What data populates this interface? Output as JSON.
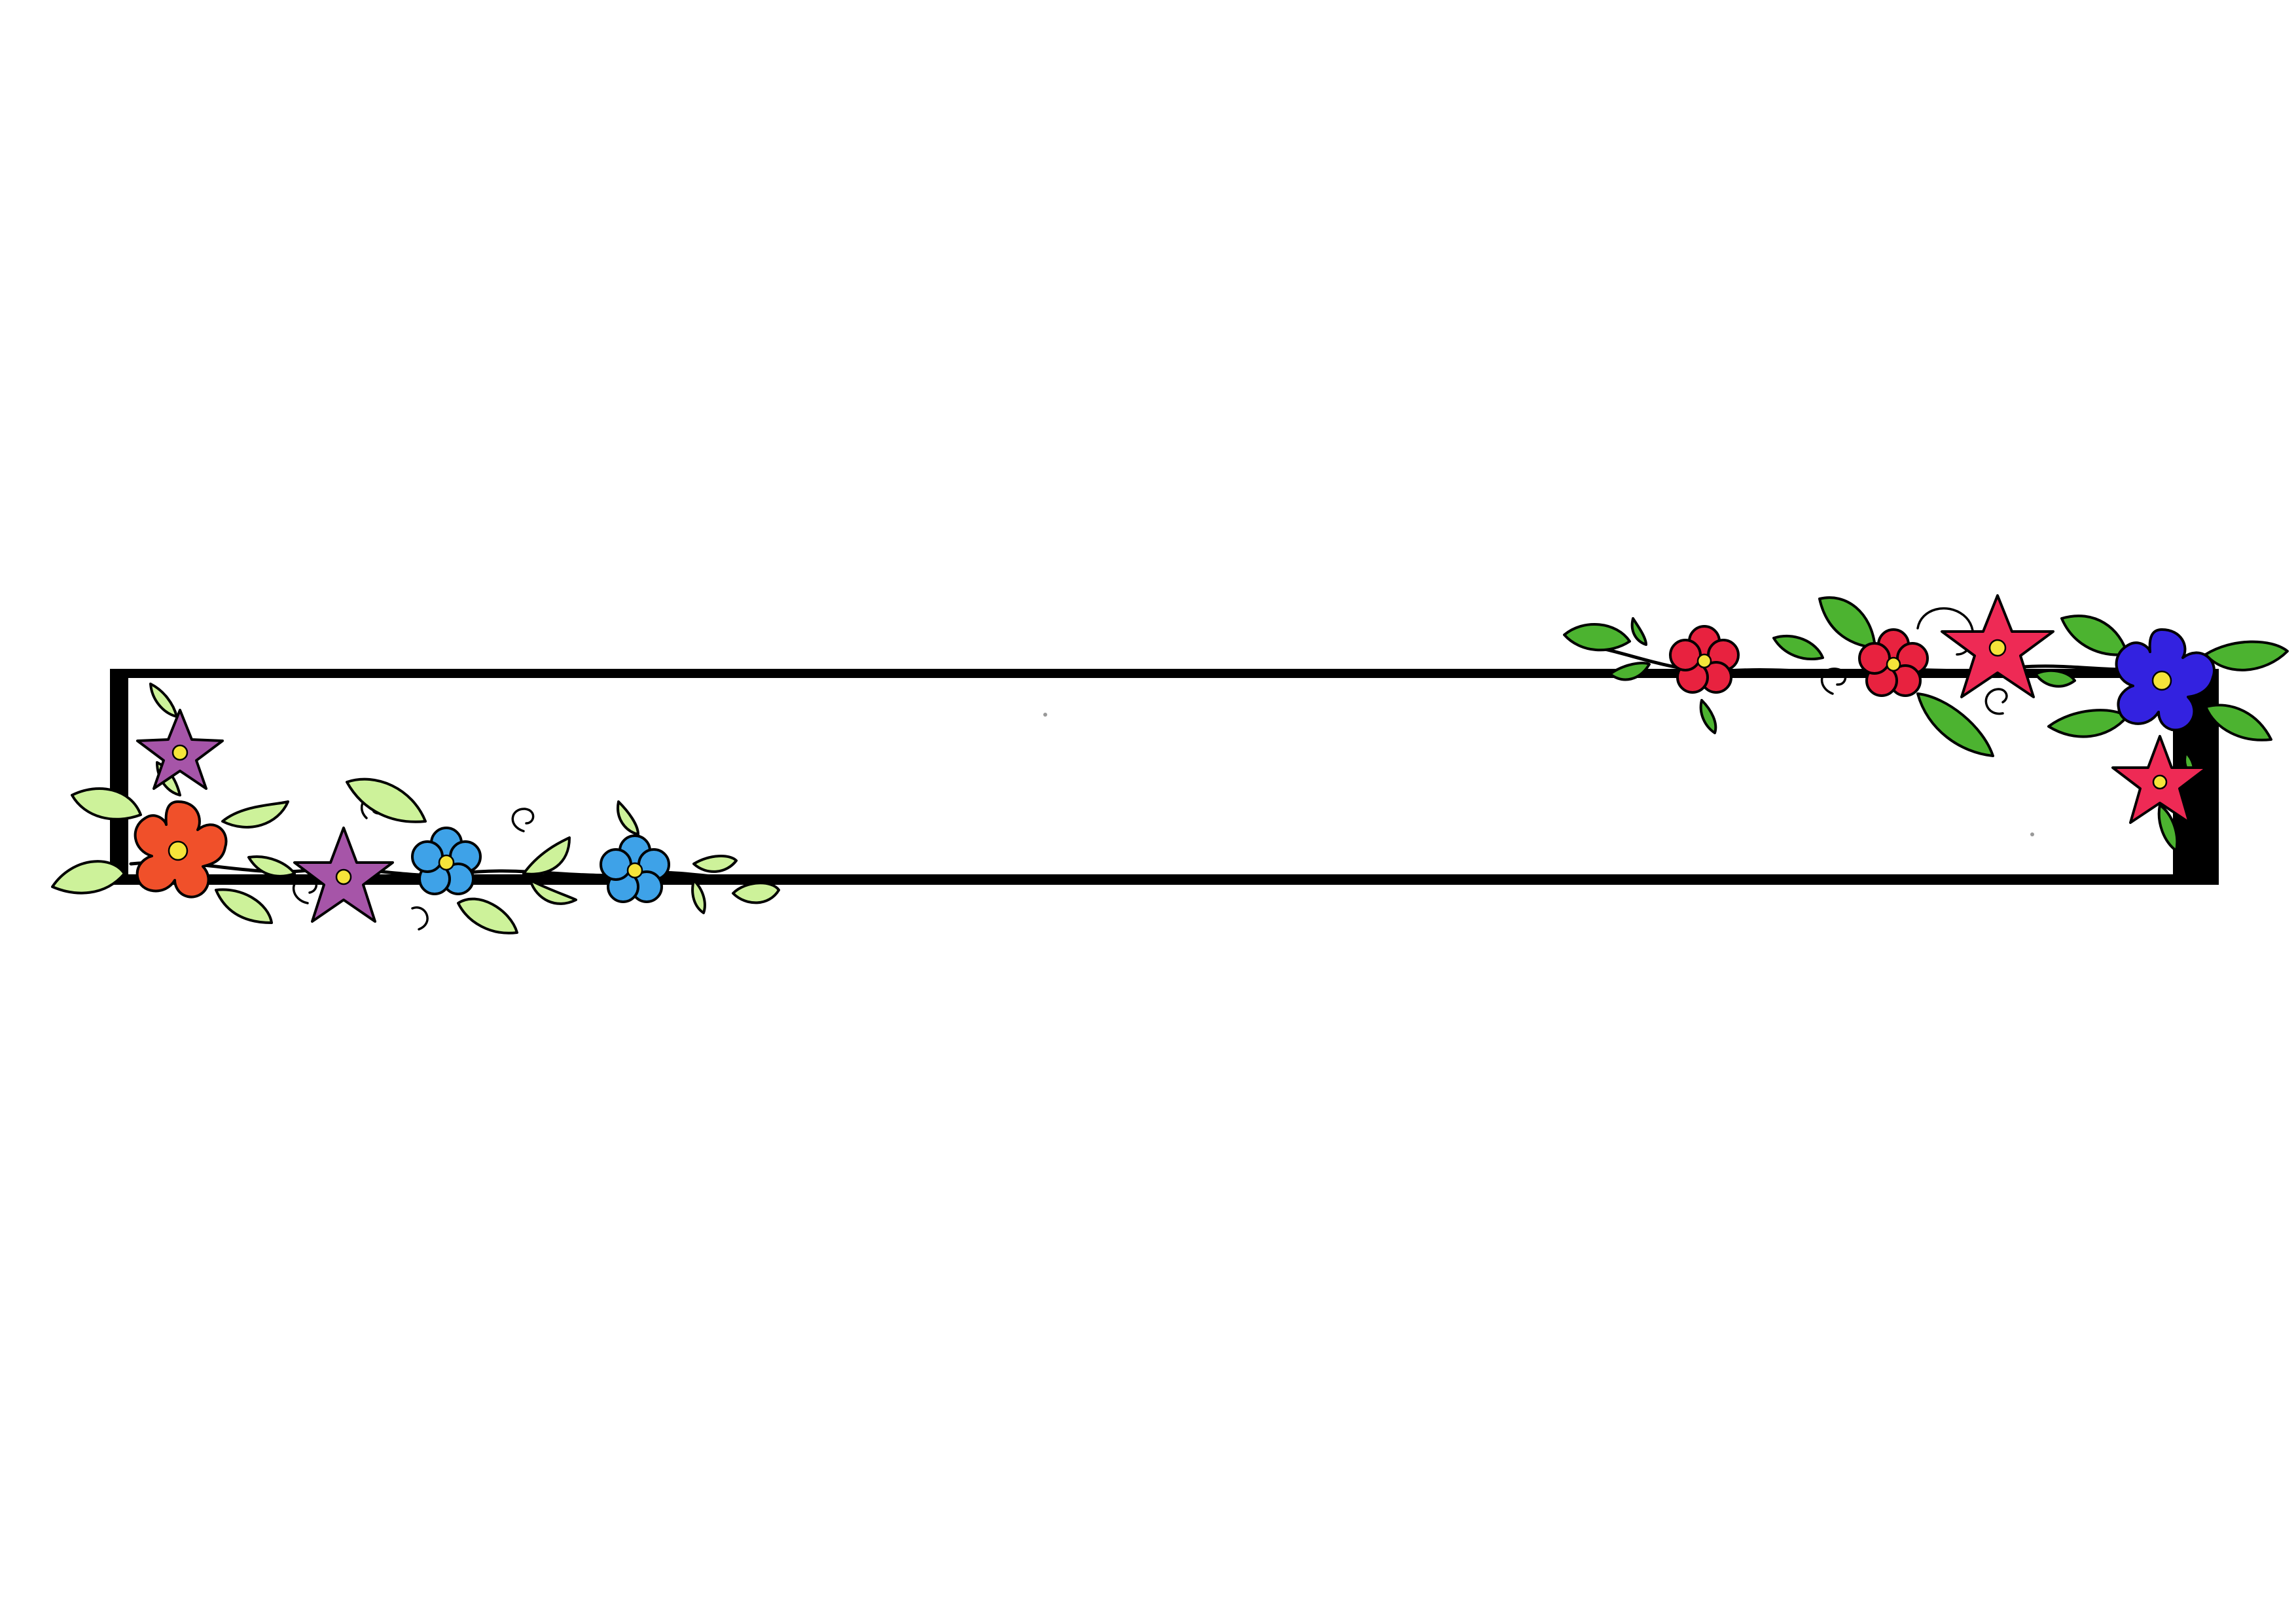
{
  "page": {
    "background": "#ffffff"
  },
  "frame": {
    "stroke_color": "#000000",
    "fill_color": "#ffffff",
    "label": ""
  },
  "decorations": {
    "left_cluster": {
      "flowers": [
        {
          "name": "purple-star-flower-icon",
          "color": "#a655a8"
        },
        {
          "name": "orange-flower-icon",
          "color": "#f0502a"
        },
        {
          "name": "purple-star-flower-icon",
          "color": "#a655a8"
        },
        {
          "name": "blue-flower-icon",
          "color": "#3ea2e8"
        },
        {
          "name": "blue-flower-icon",
          "color": "#3ea2e8"
        }
      ],
      "leaf_color": "#cdf29a",
      "center_color": "#f5e43a"
    },
    "right_cluster": {
      "flowers": [
        {
          "name": "red-flower-icon",
          "color": "#e8223f"
        },
        {
          "name": "red-flower-icon",
          "color": "#e8223f"
        },
        {
          "name": "crimson-star-flower-icon",
          "color": "#ee2a55"
        },
        {
          "name": "blue-flower-icon",
          "color": "#3322e0"
        },
        {
          "name": "crimson-star-flower-icon",
          "color": "#ee2a55"
        }
      ],
      "leaf_color": "#4cb330",
      "center_color": "#f5e43a"
    }
  }
}
